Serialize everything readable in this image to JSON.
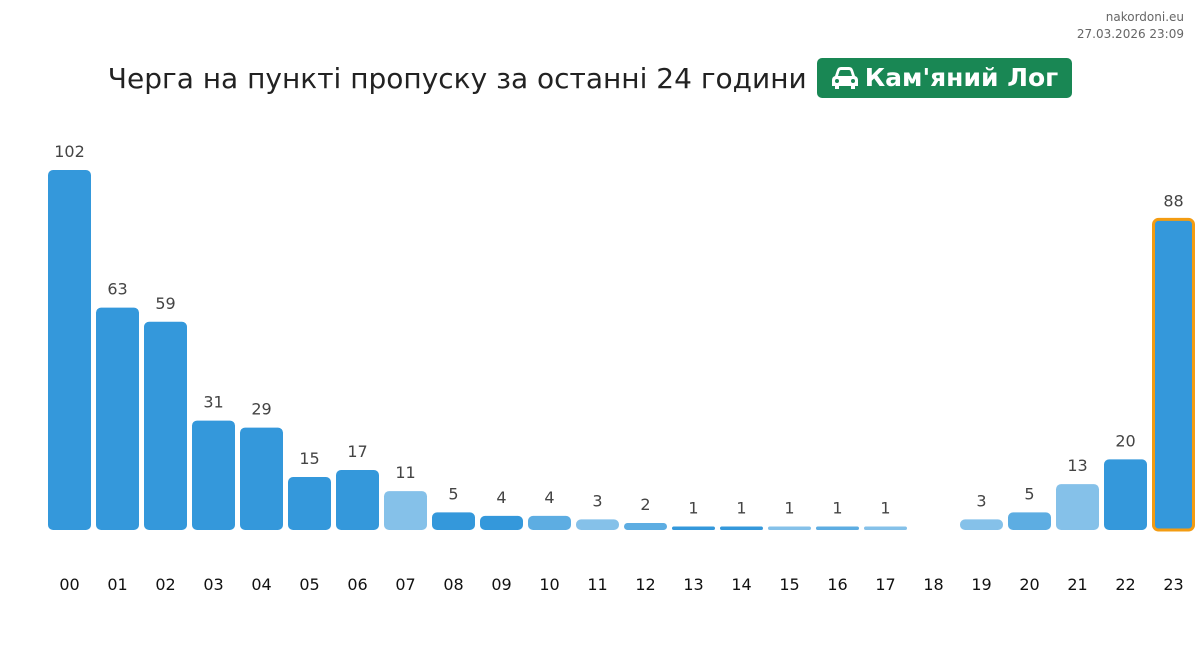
{
  "site": {
    "name": "nakordoni.eu",
    "timestamp": "27.03.2026 23:09"
  },
  "header": {
    "title": "Черга на пункті пропуску за останні 24 години",
    "badge_label": "Кам'яний Лог",
    "badge_icon": "car-icon",
    "badge_color": "#198754"
  },
  "chart_data": {
    "type": "bar",
    "title": "Черга на пункті пропуску за останні 24 години",
    "categories": [
      "00",
      "01",
      "02",
      "03",
      "04",
      "05",
      "06",
      "07",
      "08",
      "09",
      "10",
      "11",
      "12",
      "13",
      "14",
      "15",
      "16",
      "17",
      "18",
      "19",
      "20",
      "21",
      "22",
      "23"
    ],
    "values": [
      102,
      63,
      59,
      31,
      29,
      15,
      17,
      11,
      5,
      4,
      4,
      3,
      2,
      1,
      1,
      1,
      1,
      1,
      null,
      3,
      5,
      13,
      20,
      88
    ],
    "shades": [
      "dark",
      "dark",
      "dark",
      "dark",
      "dark",
      "dark",
      "dark",
      "light",
      "dark",
      "dark",
      "mid",
      "light",
      "mid",
      "dark",
      "dark",
      "light",
      "mid",
      "light",
      "none",
      "light",
      "mid",
      "light",
      "dark",
      "dark"
    ],
    "highlight_index": 23,
    "colors": {
      "dark": "#3498db",
      "mid": "#5dade2",
      "light": "#85c1e9",
      "highlight_border": "#f39c12"
    },
    "ylim": [
      0,
      102
    ],
    "xlabel": "",
    "ylabel": "",
    "grid": false
  }
}
